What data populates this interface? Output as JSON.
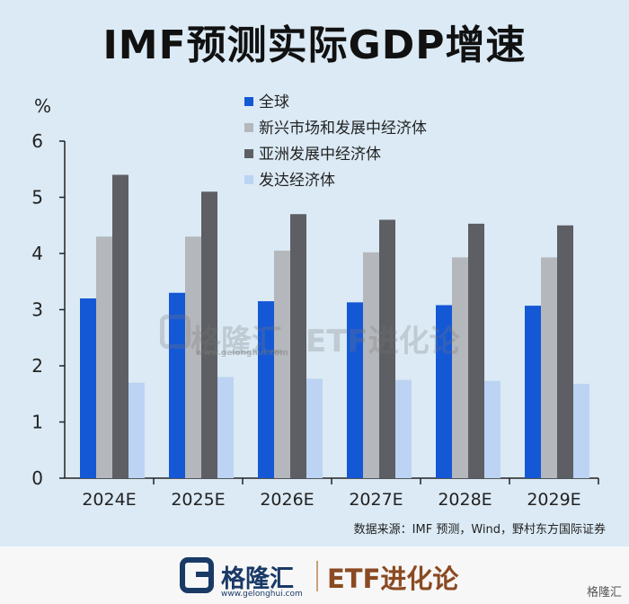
{
  "header": {
    "title": "IMF预测实际GDP增速"
  },
  "chart_data": {
    "type": "bar",
    "title": "IMF预测实际GDP增速",
    "ylabel": "%",
    "xlabel": "",
    "ylim": [
      0,
      6
    ],
    "yticks": [
      0,
      1,
      2,
      3,
      4,
      5,
      6
    ],
    "categories": [
      "2024E",
      "2025E",
      "2026E",
      "2027E",
      "2028E",
      "2029E"
    ],
    "series": [
      {
        "name": "全球",
        "color": "#1558d6",
        "values": [
          3.2,
          3.3,
          3.15,
          3.13,
          3.08,
          3.07
        ]
      },
      {
        "name": "新兴市场和发展中经济体",
        "color": "#b4b7bc",
        "values": [
          4.3,
          4.3,
          4.05,
          4.02,
          3.93,
          3.93
        ]
      },
      {
        "name": "亚洲发展中经济体",
        "color": "#5d5f64",
        "values": [
          5.4,
          5.1,
          4.7,
          4.6,
          4.53,
          4.5
        ]
      },
      {
        "name": "发达经济体",
        "color": "#bcd3f3",
        "values": [
          1.7,
          1.8,
          1.77,
          1.75,
          1.73,
          1.68
        ]
      }
    ],
    "legend_position": "top-center",
    "grid": false
  },
  "source": "数据来源：IMF 预测，Wind，野村东方国际证券",
  "watermark": {
    "brand": "格隆汇",
    "etf": "ETF进化论",
    "site": "www.gelonghui.com"
  },
  "footer": {
    "brand": "格隆汇",
    "site": "www.gelonghui.com",
    "etf": "ETF进化论",
    "corner": "格隆汇"
  }
}
